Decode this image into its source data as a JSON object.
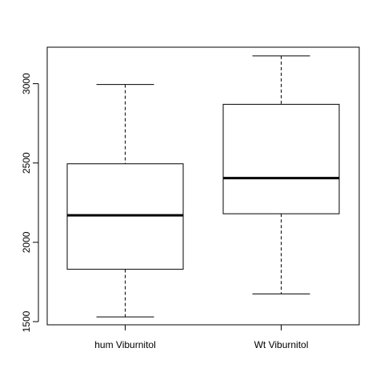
{
  "chart_data": {
    "type": "boxplot",
    "title": "",
    "xlabel": "",
    "ylabel": "",
    "categories": [
      "hum Viburnitol",
      "Wt Viburnitol"
    ],
    "boxes": [
      {
        "category": "hum Viburnitol",
        "whisker_low": 1530,
        "q1": 1830,
        "median": 2170,
        "q3": 2495,
        "whisker_high": 2995
      },
      {
        "category": "Wt Viburnitol",
        "whisker_low": 1675,
        "q1": 2180,
        "median": 2405,
        "q3": 2870,
        "whisker_high": 3175
      }
    ],
    "ylim": [
      1480,
      3230
    ],
    "yticks": [
      1500,
      2000,
      2500,
      3000
    ],
    "grid": false,
    "colors": {
      "box_fill": "#ffffff",
      "stroke": "#000000"
    }
  }
}
